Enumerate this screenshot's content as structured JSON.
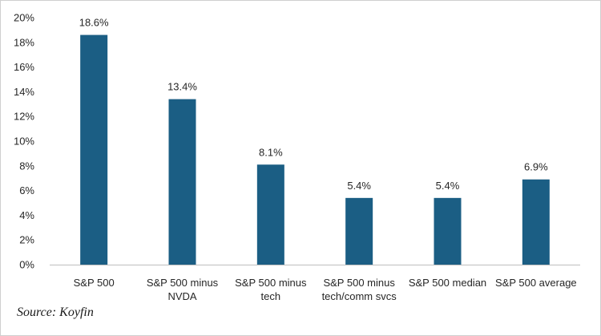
{
  "source_note": "Source: Koyfin",
  "chart_data": {
    "type": "bar",
    "title": "",
    "xlabel": "",
    "ylabel": "",
    "categories": [
      [
        "S&P 500"
      ],
      [
        "S&P 500 minus",
        "NVDA"
      ],
      [
        "S&P 500 minus",
        "tech"
      ],
      [
        "S&P 500 minus",
        "tech/comm svcs"
      ],
      [
        "S&P 500 median"
      ],
      [
        "S&P 500 average"
      ]
    ],
    "values": [
      18.6,
      13.4,
      8.1,
      5.4,
      5.4,
      6.9
    ],
    "data_labels": [
      "18.6%",
      "13.4%",
      "8.1%",
      "5.4%",
      "5.4%",
      "6.9%"
    ],
    "ylim": [
      0,
      20
    ],
    "yticks": [
      0,
      2,
      4,
      6,
      8,
      10,
      12,
      14,
      16,
      18,
      20
    ],
    "ytick_labels": [
      "0%",
      "2%",
      "4%",
      "6%",
      "8%",
      "10%",
      "12%",
      "14%",
      "16%",
      "18%",
      "20%"
    ],
    "grid": false,
    "legend": "none",
    "bar_color": "#1b5e84",
    "axis_color": "#bfbfbf"
  }
}
